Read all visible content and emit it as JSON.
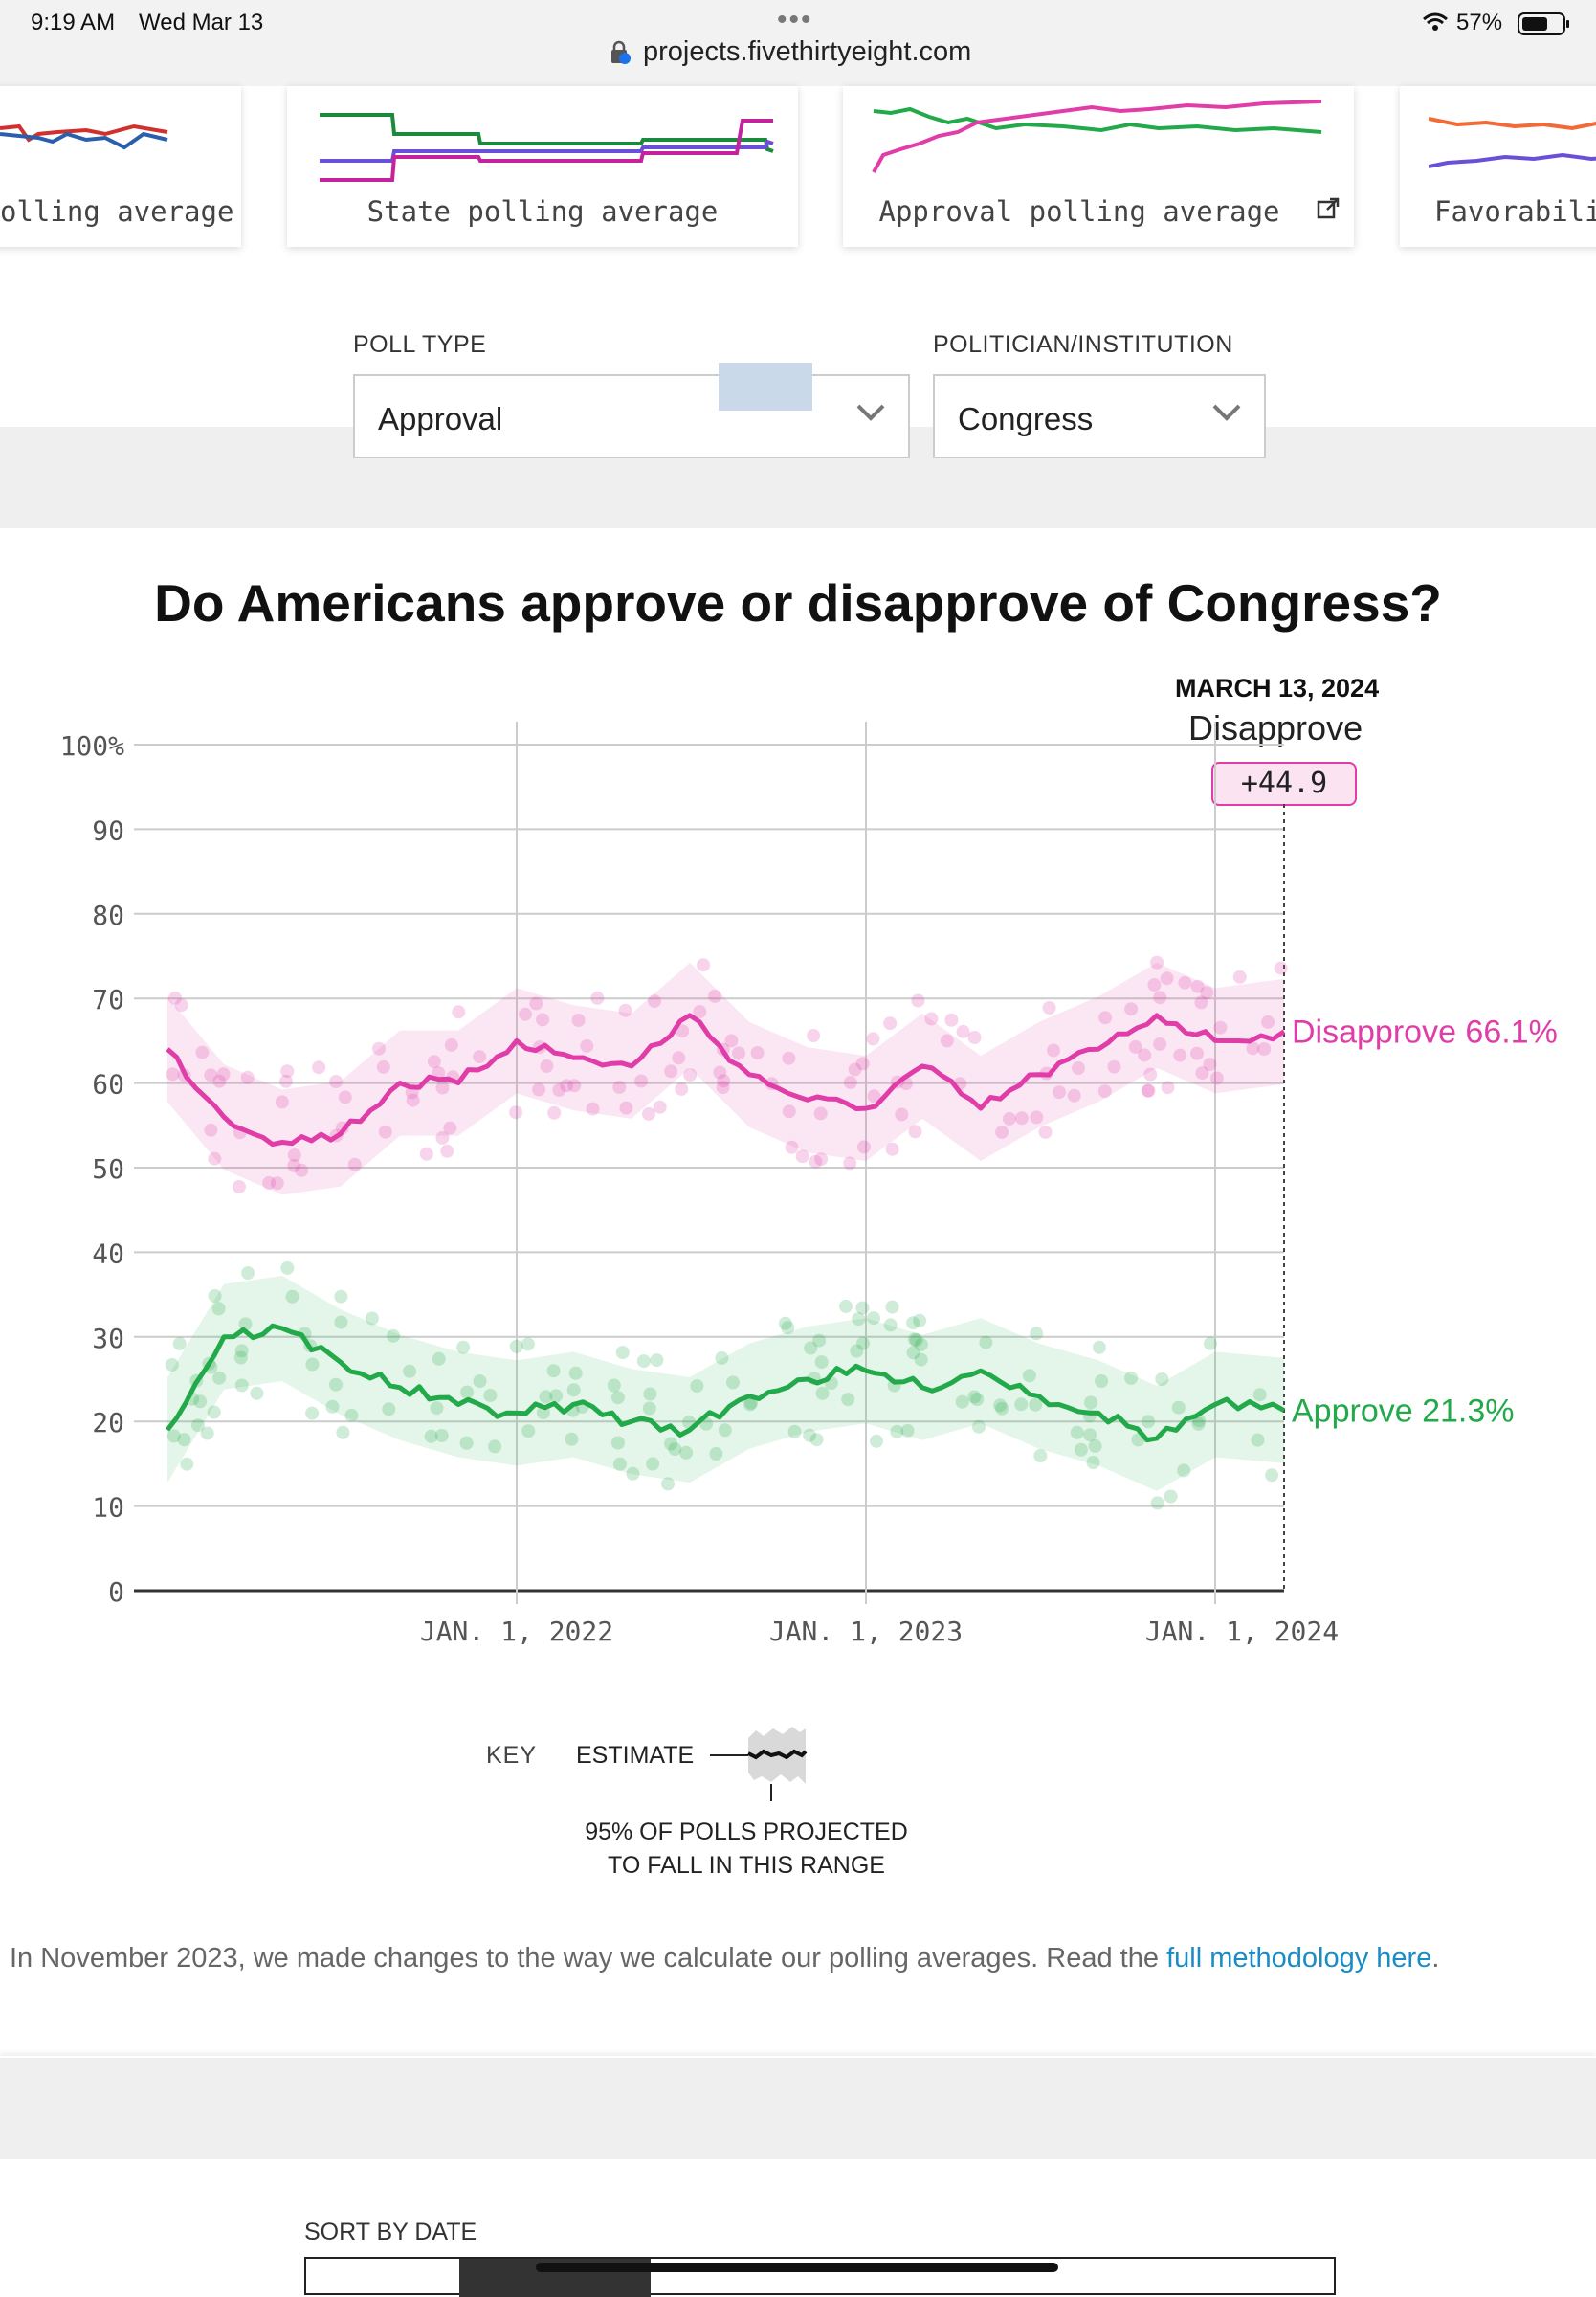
{
  "status_bar": {
    "time": "9:19 AM",
    "date": "Wed Mar 13",
    "url": "projects.fivethirtyeight.com",
    "battery": "57%"
  },
  "nav_cards": [
    {
      "label": "olling average"
    },
    {
      "label": "State polling average"
    },
    {
      "label": "Approval polling average"
    },
    {
      "label": "Favorabili"
    }
  ],
  "filters": {
    "poll_type": {
      "label": "POLL TYPE",
      "value": "Approval"
    },
    "politician": {
      "label": "POLITICIAN/INSTITUTION",
      "value": "Congress"
    }
  },
  "chart_title": "Do Americans approve or disapprove of Congress?",
  "current": {
    "date": "MARCH 13, 2024",
    "leader": "Disapprove",
    "margin": "+44.9"
  },
  "colors": {
    "disapprove": "#e13da8",
    "approve": "#22a94a"
  },
  "chart_data": {
    "type": "line",
    "x_ticks": [
      "JAN. 1, 2022",
      "JAN. 1, 2023",
      "JAN. 1, 2024"
    ],
    "y_ticks": [
      "100%",
      "90",
      "80",
      "70",
      "60",
      "50",
      "40",
      "30",
      "20",
      "10",
      "0"
    ],
    "ylim": [
      0,
      100
    ],
    "x_range": [
      "2021-01",
      "2024-03-13"
    ],
    "series": [
      {
        "name": "Disapprove",
        "end_label": "Disapprove 66.1%",
        "color": "#e13da8",
        "x": [
          "2021-01",
          "2021-03",
          "2021-05",
          "2021-07",
          "2021-09",
          "2021-11",
          "2022-01",
          "2022-03",
          "2022-05",
          "2022-07",
          "2022-09",
          "2022-11",
          "2023-01",
          "2023-03",
          "2023-05",
          "2023-07",
          "2023-09",
          "2023-11",
          "2024-01",
          "2024-03-13"
        ],
        "values": [
          64,
          56,
          53,
          54,
          60,
          60,
          65,
          63,
          62,
          68,
          61,
          58,
          57,
          62,
          57,
          61,
          64,
          68,
          65,
          66.1
        ]
      },
      {
        "name": "Approve",
        "end_label": "Approve 21.3%",
        "color": "#22a94a",
        "x": [
          "2021-01",
          "2021-03",
          "2021-05",
          "2021-07",
          "2021-09",
          "2021-11",
          "2022-01",
          "2022-03",
          "2022-05",
          "2022-07",
          "2022-09",
          "2022-11",
          "2023-01",
          "2023-03",
          "2023-05",
          "2023-07",
          "2023-09",
          "2023-11",
          "2024-01",
          "2024-03-13"
        ],
        "values": [
          19,
          30,
          31,
          27,
          24,
          22,
          21,
          22,
          20,
          19,
          23,
          25,
          26,
          24,
          26,
          23,
          21,
          18,
          22,
          21.3
        ]
      }
    ]
  },
  "key": {
    "title": "KEY",
    "estimate": "ESTIMATE",
    "range_line1": "95% OF POLLS PROJECTED",
    "range_line2": "TO FALL IN THIS RANGE"
  },
  "note": {
    "text": "In November 2023, we made changes to the way we calculate our polling averages. Read the ",
    "link": "full methodology here",
    "end": "."
  },
  "sort": {
    "label": "SORT BY DATE"
  }
}
